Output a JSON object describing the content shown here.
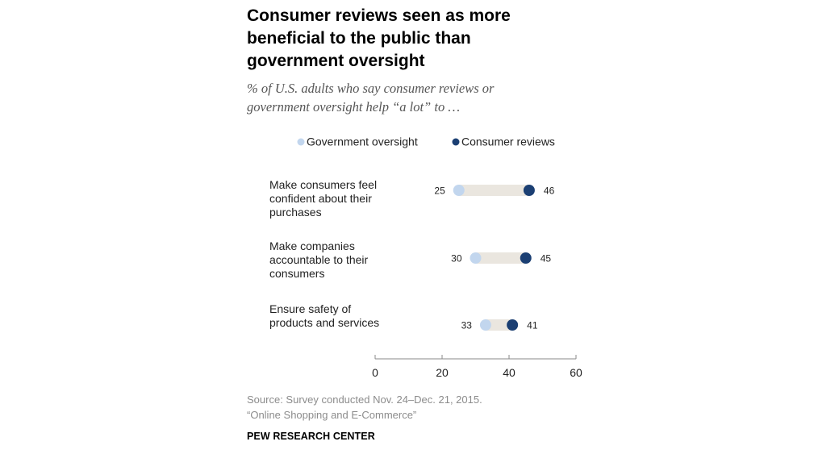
{
  "header": {
    "title_lines": [
      "Consumer reviews seen as more",
      "beneficial to the public than",
      "government oversight"
    ],
    "subtitle_lines": [
      "% of U.S. adults who say consumer reviews or",
      "government oversight help “a lot” to …"
    ]
  },
  "footer": {
    "source_lines": [
      "Source: Survey conducted Nov. 24–Dec. 21, 2015.",
      "“Online Shopping and E-Commerce”"
    ],
    "brand": "PEW RESEARCH CENTER"
  },
  "colors": {
    "government": "#c2d6ee",
    "consumer": "#1b3f73",
    "track": "#eae6df",
    "axis": "#8a8a8a",
    "label_text": "#222222"
  },
  "chart_data": {
    "type": "dot",
    "title": "Consumer reviews seen as more beneficial to the public than government oversight",
    "categories": [
      [
        "Make consumers feel",
        "confident about their",
        "purchases"
      ],
      [
        "Make companies",
        "accountable to their",
        "consumers"
      ],
      [
        "Ensure safety of",
        "products and services"
      ]
    ],
    "series": [
      {
        "name": "Government oversight",
        "key": "government",
        "values": [
          25,
          30,
          33
        ]
      },
      {
        "name": "Consumer reviews",
        "key": "consumer",
        "values": [
          46,
          45,
          41
        ]
      }
    ],
    "xlim": [
      0,
      60
    ],
    "xticks": [
      0,
      20,
      40,
      60
    ],
    "legend_position": "top",
    "grid": false
  }
}
